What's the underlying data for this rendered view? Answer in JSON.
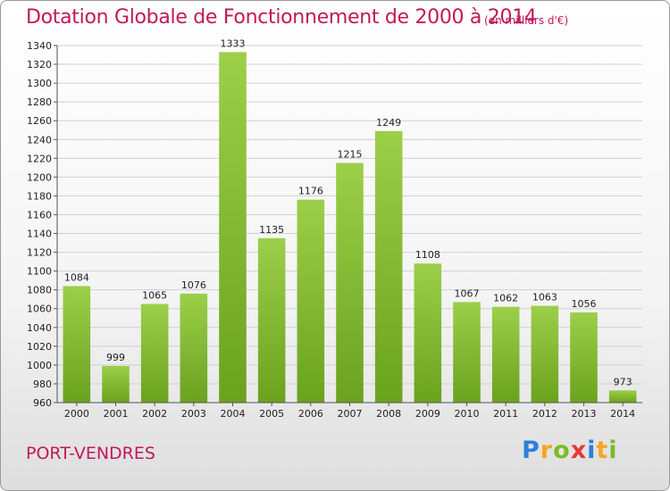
{
  "chart_data": {
    "type": "bar",
    "title": "Dotation Globale de Fonctionnement de 2000 à 2014",
    "subtitle": "(en milliers d'€)",
    "categories": [
      "2000",
      "2001",
      "2002",
      "2003",
      "2004",
      "2005",
      "2006",
      "2007",
      "2008",
      "2009",
      "2010",
      "2011",
      "2012",
      "2013",
      "2014"
    ],
    "values": [
      1084,
      999,
      1065,
      1076,
      1333,
      1135,
      1176,
      1215,
      1249,
      1108,
      1067,
      1062,
      1063,
      1056,
      973
    ],
    "ylim": [
      960,
      1340
    ],
    "ytick_step": 20,
    "grid": true,
    "bar_color": "#7cba2a"
  },
  "location": "PORT-VENDRES",
  "logo": {
    "text": "Proxiti",
    "letters": [
      {
        "ch": "P",
        "color": "#2e7fd8"
      },
      {
        "ch": "r",
        "color": "#f5a623"
      },
      {
        "ch": "o",
        "color": "#7cba2a"
      },
      {
        "ch": "x",
        "color": "#e53935"
      },
      {
        "ch": "i",
        "color": "#2e7fd8"
      },
      {
        "ch": "t",
        "color": "#f5a623"
      },
      {
        "ch": "i",
        "color": "#7cba2a"
      }
    ]
  }
}
